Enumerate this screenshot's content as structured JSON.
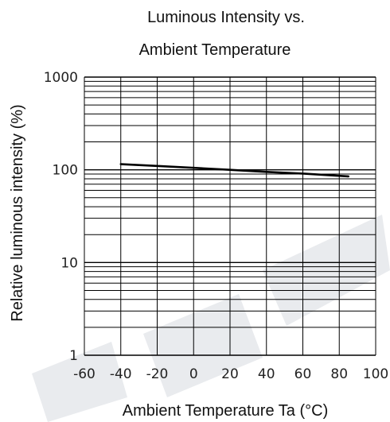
{
  "chart_data": {
    "type": "line",
    "title_lines": [
      "Luminous Intensity vs.",
      "Ambient Temperature"
    ],
    "xlabel": "Ambient Temperature Ta (°C)",
    "ylabel": "Relative luminous intensity (%)",
    "x_scale": "linear",
    "y_scale": "log",
    "xlim": [
      -60,
      100
    ],
    "ylim": [
      1,
      1000
    ],
    "x_ticks": [
      -60,
      -40,
      -20,
      0,
      20,
      40,
      60,
      80,
      100
    ],
    "x_tick_labels": [
      "-60",
      "-40",
      "-20",
      "0",
      "20",
      "40",
      "60",
      "80",
      "100"
    ],
    "y_ticks": [
      1,
      10,
      100,
      1000
    ],
    "y_tick_labels": [
      "1",
      "10",
      "100",
      "1000"
    ],
    "grid": true,
    "series": [
      {
        "color": "#000000",
        "x": [
          -40,
          -20,
          0,
          20,
          40,
          60,
          85
        ],
        "y": [
          115,
          110,
          105,
          100,
          95,
          91,
          85
        ]
      }
    ]
  },
  "colors": {
    "grid": "#000000",
    "line": "#000000",
    "watermark": "#e9ebee"
  }
}
